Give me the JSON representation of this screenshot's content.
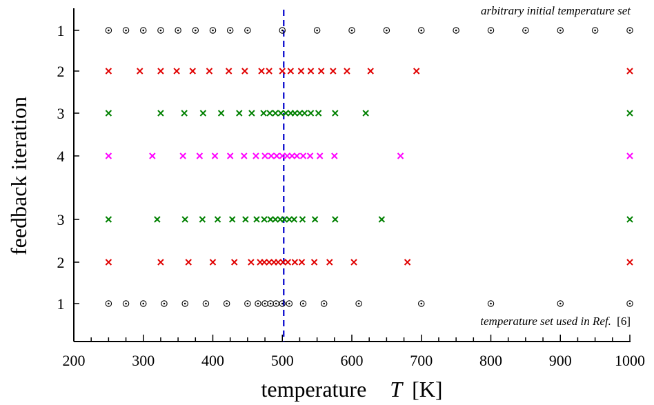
{
  "chart_data": {
    "type": "scatter",
    "xlabel": "temperature",
    "xlabel_symbol": "T",
    "xlabel_unit": "[K]",
    "ylabel": "feedback iteration",
    "xlim": [
      200,
      1000
    ],
    "x_ticks": [
      200,
      300,
      400,
      500,
      600,
      700,
      800,
      900,
      1000
    ],
    "reference_line": {
      "x": 502,
      "color": "#0000cc",
      "style": "dashed"
    },
    "annotations": {
      "top": "arbitrary initial temperature set",
      "bottom_text": "temperature set used in Ref.",
      "bottom_ref": "[6]"
    },
    "series": [
      {
        "row_label": "1",
        "marker": "circle",
        "color": "#000000",
        "x": [
          250,
          275,
          300,
          325,
          350,
          375,
          400,
          425,
          450,
          500,
          550,
          600,
          650,
          700,
          750,
          800,
          850,
          900,
          950,
          1000
        ]
      },
      {
        "row_label": "2",
        "marker": "x",
        "color": "#e00000",
        "x": [
          250,
          295,
          325,
          348,
          371,
          395,
          423,
          446,
          470,
          481,
          500,
          512,
          527,
          541,
          556,
          573,
          593,
          627,
          693,
          1000
        ]
      },
      {
        "row_label": "3",
        "marker": "x",
        "color": "#008000",
        "x": [
          250,
          325,
          359,
          386,
          412,
          438,
          456,
          473,
          482,
          490,
          498,
          505,
          512,
          518,
          525,
          532,
          541,
          552,
          576,
          620,
          1000
        ]
      },
      {
        "row_label": "4",
        "marker": "x",
        "color": "#ff00ff",
        "x": [
          250,
          313,
          357,
          381,
          403,
          425,
          445,
          462,
          475,
          484,
          492,
          500,
          507,
          514,
          521,
          530,
          540,
          554,
          575,
          670,
          1000
        ]
      },
      {
        "row_label": "3",
        "marker": "x",
        "color": "#008000",
        "x": [
          250,
          320,
          360,
          385,
          407,
          428,
          447,
          463,
          474,
          483,
          490,
          497,
          503,
          510,
          517,
          529,
          547,
          576,
          643,
          1000
        ]
      },
      {
        "row_label": "2",
        "marker": "x",
        "color": "#e00000",
        "x": [
          250,
          325,
          365,
          400,
          431,
          455,
          468,
          474,
          481,
          488,
          494,
          501,
          508,
          518,
          528,
          546,
          568,
          603,
          680,
          1000
        ]
      },
      {
        "row_label": "1",
        "marker": "circle",
        "color": "#000000",
        "x": [
          250,
          275,
          300,
          330,
          360,
          390,
          420,
          450,
          465,
          475,
          483,
          491,
          500,
          510,
          530,
          560,
          610,
          700,
          800,
          900,
          1000
        ]
      }
    ]
  }
}
